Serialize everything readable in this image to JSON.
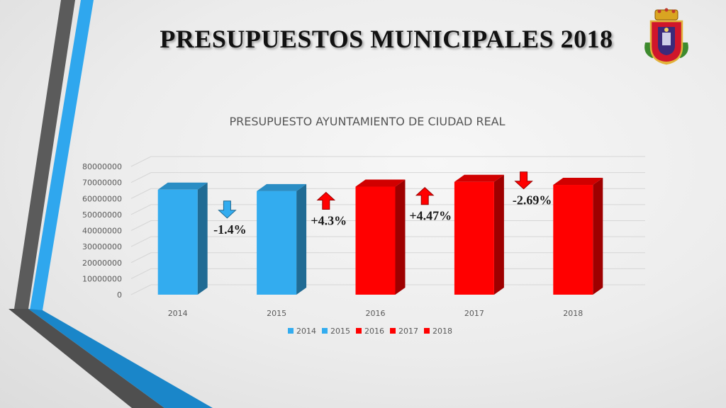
{
  "slide": {
    "title": "PRESUPUESTOS MUNICIPALES 2018",
    "logo_icon": "ciudad-real-coat-of-arms"
  },
  "colors": {
    "blue": "#33acef",
    "red": "#ff0000",
    "accent_stripe": "#2fa7ee",
    "gray_stripe": "#5b5b5b"
  },
  "chart_data": {
    "type": "bar",
    "title": "PRESUPUESTO AYUNTAMIENTO DE CIUDAD REAL",
    "xlabel": "",
    "ylabel": "",
    "categories": [
      "2014",
      "2015",
      "2016",
      "2017",
      "2018"
    ],
    "values": [
      65500000,
      64600000,
      67400000,
      70400000,
      68500000
    ],
    "bar_colors": [
      "blue",
      "blue",
      "red",
      "red",
      "red"
    ],
    "ylim": [
      0,
      80000000
    ],
    "yticks": [
      "0",
      "10000000",
      "20000000",
      "30000000",
      "40000000",
      "50000000",
      "60000000",
      "70000000",
      "80000000"
    ],
    "grid": true,
    "legend_position": "bottom",
    "legend": [
      {
        "label": "2014",
        "color": "blue"
      },
      {
        "label": "2015",
        "color": "blue"
      },
      {
        "label": "2016",
        "color": "red"
      },
      {
        "label": "2017",
        "color": "red"
      },
      {
        "label": "2018",
        "color": "red"
      }
    ],
    "changes": [
      {
        "label": "-1.4%",
        "direction": "down",
        "color": "blue"
      },
      {
        "label": "+4.3%",
        "direction": "up",
        "color": "red"
      },
      {
        "label": "+4.47%",
        "direction": "up",
        "color": "red"
      },
      {
        "label": "-2.69%",
        "direction": "down",
        "color": "red"
      }
    ]
  }
}
